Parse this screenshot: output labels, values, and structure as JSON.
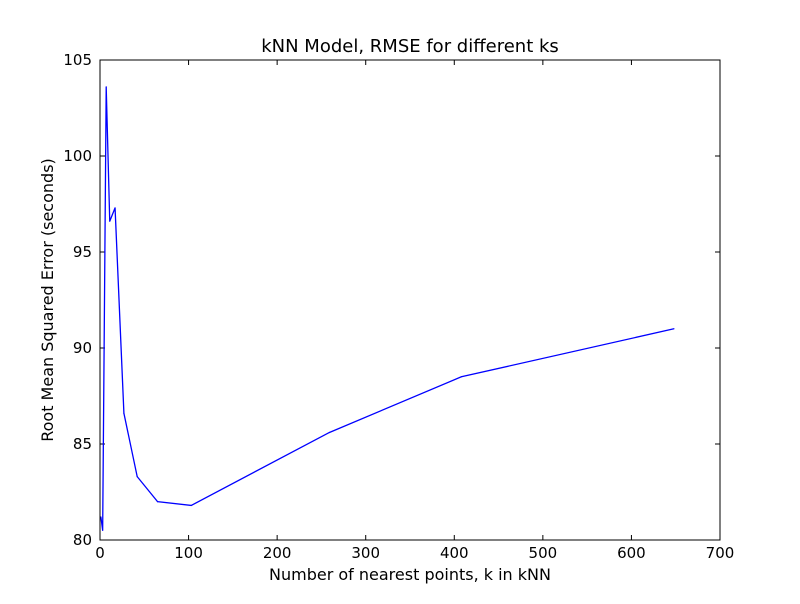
{
  "chart_data": {
    "type": "line",
    "title": "kNN Model, RMSE for different ks",
    "xlabel": "Number of nearest points, k in kNN",
    "ylabel": "Root Mean Squared Error (seconds)",
    "xlim": [
      0,
      700
    ],
    "ylim": [
      80,
      105
    ],
    "xticks": [
      0,
      100,
      200,
      300,
      400,
      500,
      600,
      700
    ],
    "yticks": [
      80,
      85,
      90,
      95,
      100,
      105
    ],
    "grid": false,
    "legend": "none",
    "line_color": "#0000ff",
    "series": [
      {
        "x": [
          1,
          3,
          7,
          11,
          17,
          27,
          42,
          65,
          103,
          259,
          408,
          648
        ],
        "y": [
          81.2,
          80.5,
          103.6,
          96.6,
          97.3,
          86.6,
          83.3,
          82.0,
          81.8,
          85.6,
          88.5,
          91.0
        ]
      }
    ]
  }
}
